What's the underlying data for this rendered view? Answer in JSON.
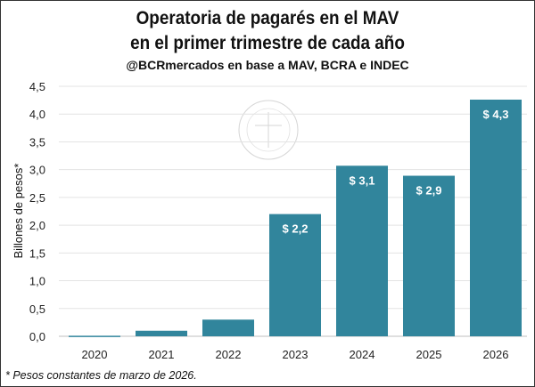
{
  "chart_data": {
    "type": "bar",
    "title": [
      "Operatoria de pagarés en el MAV",
      "en el primer trimestre de cada año"
    ],
    "subtitle": "@BCRmercados en base a MAV, BCRA e INDEC",
    "ylabel": "Billones de pesos*",
    "xlabel": "",
    "categories": [
      "2020",
      "2021",
      "2022",
      "2023",
      "2024",
      "2025",
      "2026"
    ],
    "values": [
      0.01,
      0.1,
      0.3,
      2.2,
      3.07,
      2.89,
      4.26
    ],
    "data_labels": [
      "",
      "",
      "",
      "$ 2,2",
      "$ 3,1",
      "$ 2,9",
      "$ 4,3"
    ],
    "ylim": [
      0,
      4.5
    ],
    "yticks": [
      "0,0",
      "0,5",
      "1,0",
      "1,5",
      "2,0",
      "2,5",
      "3,0",
      "3,5",
      "4,0",
      "4,5"
    ],
    "grid": true,
    "bar_color": "#31859c",
    "footnote": "* Pesos constantes de marzo de 2026.",
    "watermark": "BOLSA DE COMERCIO DE ROSARIO"
  }
}
